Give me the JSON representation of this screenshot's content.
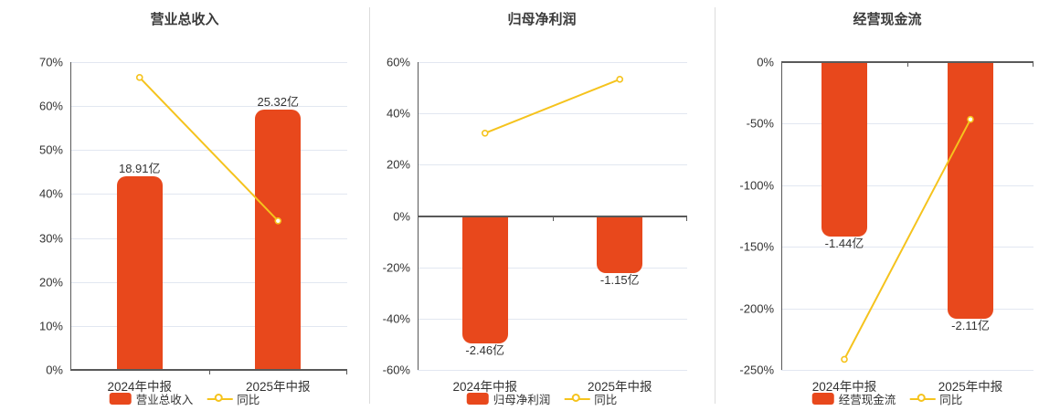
{
  "colors": {
    "bar": "#e8481c",
    "line": "#f5c31d",
    "marker_fill": "#ffffff",
    "grid": "#e2e7f1",
    "axis": "#595959",
    "text": "#333333",
    "separator": "#dcdcdc"
  },
  "chart_data": [
    {
      "type": "bar",
      "title": "营业总收入",
      "categories": [
        "2024年中报",
        "2025年中报"
      ],
      "y_axis": {
        "min": 0,
        "max": 70,
        "ticks": [
          70,
          60,
          50,
          40,
          30,
          20,
          10,
          0
        ],
        "unit": "%"
      },
      "series": [
        {
          "name": "营业总收入",
          "type": "bar",
          "value_labels": [
            "18.91亿",
            "25.32亿"
          ],
          "display_values_pct": [
            44.0,
            59.3
          ]
        },
        {
          "name": "同比",
          "type": "line",
          "values_pct": [
            66.5,
            33.9
          ]
        }
      ],
      "legend": [
        "营业总收入",
        "同比"
      ],
      "grid": true,
      "legend_position": "bottom"
    },
    {
      "type": "bar",
      "title": "归母净利润",
      "categories": [
        "2024年中报",
        "2025年中报"
      ],
      "y_axis": {
        "min": -60,
        "max": 60,
        "ticks": [
          60,
          40,
          20,
          0,
          -20,
          -40,
          -60
        ],
        "unit": "%"
      },
      "series": [
        {
          "name": "归母净利润",
          "type": "bar",
          "value_labels": [
            "-2.46亿",
            "-1.15亿"
          ],
          "display_values_pct": [
            -49.7,
            -22.4
          ]
        },
        {
          "name": "同比",
          "type": "line",
          "values_pct": [
            32.3,
            53.3
          ]
        }
      ],
      "legend": [
        "归母净利润",
        "同比"
      ],
      "grid": true,
      "legend_position": "bottom"
    },
    {
      "type": "bar",
      "title": "经营现金流",
      "categories": [
        "2024年中报",
        "2025年中报"
      ],
      "y_axis": {
        "min": -250,
        "max": 0,
        "ticks": [
          0,
          -50,
          -100,
          -150,
          -200,
          -250
        ],
        "unit": "%"
      },
      "series": [
        {
          "name": "经营现金流",
          "type": "bar",
          "value_labels": [
            "-1.44亿",
            "-2.11亿"
          ],
          "display_values_pct": [
            -141.7,
            -208.4
          ]
        },
        {
          "name": "同比",
          "type": "line",
          "values_pct": [
            -241.4,
            -46.5
          ]
        }
      ],
      "legend": [
        "经营现金流",
        "同比"
      ],
      "grid": true,
      "legend_position": "bottom"
    }
  ]
}
